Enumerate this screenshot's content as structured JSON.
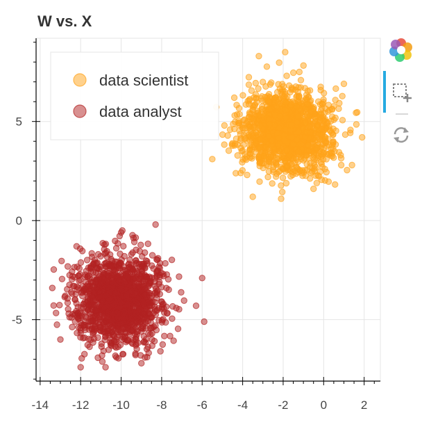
{
  "chart_data": {
    "type": "scatter",
    "title": "W vs. X",
    "xlabel": "",
    "ylabel": "",
    "xlim": [
      -14.2,
      2.8
    ],
    "ylim": [
      -8.1,
      9.2
    ],
    "x_ticks": [
      -14,
      -12,
      -10,
      -8,
      -6,
      -4,
      -2,
      0,
      2
    ],
    "y_ticks": [
      -5,
      0,
      5
    ],
    "grid": true,
    "legend_position": "top-left",
    "series": [
      {
        "name": "data scientist",
        "color": "#ffa31a",
        "center": [
          -1.8,
          4.5
        ],
        "spread": [
          1.1,
          1.05
        ],
        "n": 1500,
        "outliers": [
          [
            -3.2,
            8.3
          ],
          [
            -1.9,
            8.5
          ],
          [
            -1.2,
            7.5
          ],
          [
            1.0,
            6.9
          ],
          [
            -5.5,
            3.1
          ],
          [
            1.9,
            4.2
          ],
          [
            -3.5,
            1.2
          ],
          [
            -0.5,
            1.6
          ],
          [
            1.4,
            2.8
          ],
          [
            -4.1,
            2.4
          ],
          [
            -2.1,
            1.1
          ],
          [
            -4.9,
            4.8
          ]
        ]
      },
      {
        "name": "data analyst",
        "color": "#b22222",
        "center": [
          -10.1,
          -4.0
        ],
        "spread": [
          1.05,
          1.1
        ],
        "n": 1500,
        "outliers": [
          [
            -12.2,
            -1.3
          ],
          [
            -13.4,
            -3.4
          ],
          [
            -12.0,
            -7.4
          ],
          [
            -9.0,
            -7.2
          ],
          [
            -6.3,
            -4.3
          ],
          [
            -5.9,
            -5.1
          ],
          [
            -6.0,
            -2.9
          ],
          [
            -13.0,
            -6.0
          ],
          [
            -8.3,
            -0.2
          ],
          [
            -10.0,
            -0.6
          ]
        ]
      }
    ]
  },
  "toolbar": {
    "logo_icon": "bokeh-logo-icon",
    "tools": [
      "box-zoom-icon",
      "reset-icon"
    ]
  }
}
